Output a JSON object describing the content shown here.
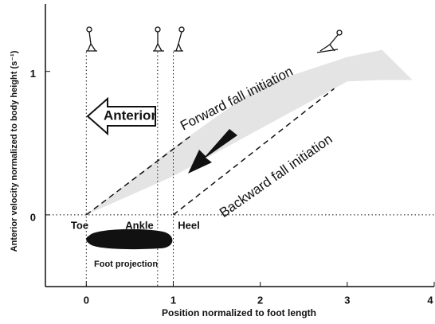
{
  "chart_data": {
    "type": "line",
    "x_label": "Position normalized to foot length",
    "y_label": "Anterior velocity normalized to body height (s⁻¹)",
    "xlim": [
      -0.47,
      4
    ],
    "ylim": [
      -0.5,
      1.47
    ],
    "xticks": [
      0,
      1,
      2,
      3,
      4
    ],
    "yticks": [
      0,
      1
    ],
    "reference_x": [
      0,
      0.82,
      1
    ],
    "reference_y": [
      0
    ],
    "band": {
      "color": "#e4e4e4",
      "x": [
        0,
        1,
        2,
        3,
        3.4,
        3.75
      ],
      "upper": [
        0,
        0.47,
        0.9,
        1.1,
        1.15,
        0.94
      ],
      "lower": [
        0,
        0.27,
        0.6,
        0.93,
        0.94,
        0.94
      ]
    },
    "series": [
      {
        "name": "Forward fall initiation",
        "color": "#111111",
        "x": [
          0,
          1.2
        ],
        "values": [
          0,
          0.55
        ]
      },
      {
        "name": "Backward fall initiation",
        "color": "#111111",
        "x": [
          1,
          2.85
        ],
        "values": [
          0,
          0.88
        ]
      }
    ],
    "annotations": {
      "anterior": "Anterior",
      "toe": "Toe",
      "ankle": "Ankle",
      "heel": "Heel",
      "foot": "Foot projection"
    }
  }
}
